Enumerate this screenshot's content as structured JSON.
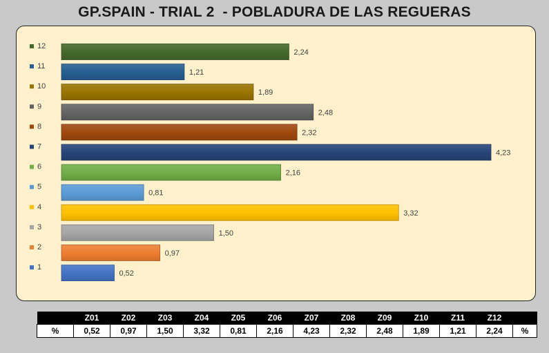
{
  "chart_data": {
    "type": "bar",
    "orientation": "horizontal",
    "title": "GP.SPAIN - TRIAL 2  - POBLADURA DE LAS REGUERAS",
    "categories": [
      "1",
      "2",
      "3",
      "4",
      "5",
      "6",
      "7",
      "8",
      "9",
      "10",
      "11",
      "12"
    ],
    "values": [
      0.52,
      0.97,
      1.5,
      3.32,
      0.81,
      2.16,
      4.23,
      2.32,
      2.48,
      1.89,
      1.21,
      2.24
    ],
    "value_labels": [
      "0,52",
      "0,97",
      "1,50",
      "3,32",
      "0,81",
      "2,16",
      "4,23",
      "2,32",
      "2,48",
      "1,89",
      "1,21",
      "2,24"
    ],
    "colors": [
      "#4472c4",
      "#ed7d31",
      "#a5a5a5",
      "#ffc000",
      "#5b9bd5",
      "#70ad47",
      "#264478",
      "#9e480e",
      "#636363",
      "#997300",
      "#255e91",
      "#43682b"
    ],
    "xlim": [
      0,
      4.23
    ],
    "legend": "left",
    "grid": false
  },
  "table": {
    "headers": [
      "",
      "Z01",
      "Z02",
      "Z03",
      "Z04",
      "Z05",
      "Z06",
      "Z07",
      "Z08",
      "Z09",
      "Z10",
      "Z11",
      "Z12",
      ""
    ],
    "row_label": "%",
    "row_label_end": "%",
    "values": [
      "0,52",
      "0,97",
      "1,50",
      "3,32",
      "0,81",
      "2,16",
      "4,23",
      "2,32",
      "2,48",
      "1,89",
      "1,21",
      "2,24"
    ]
  }
}
